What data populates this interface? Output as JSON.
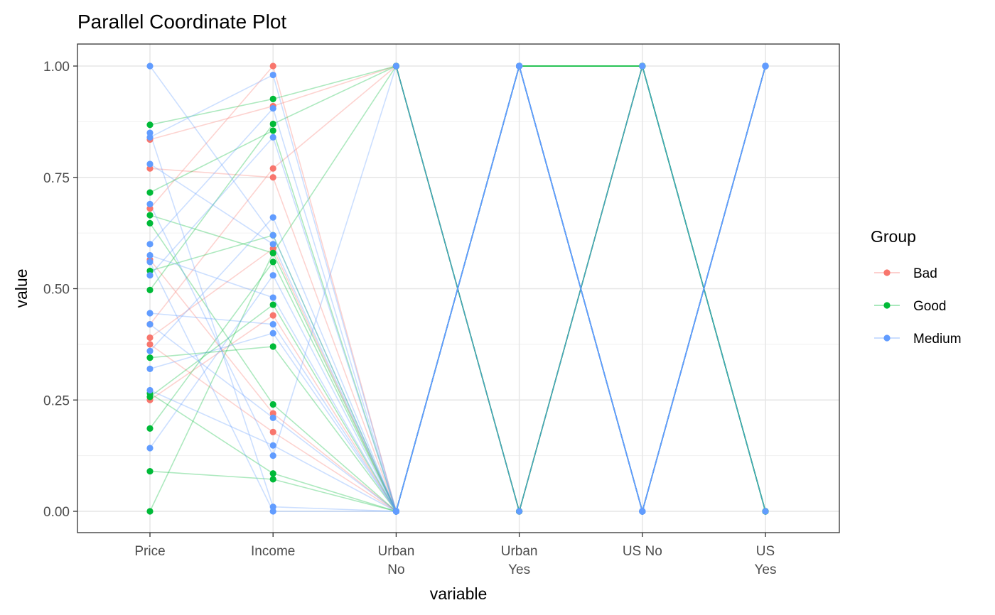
{
  "chart_data": {
    "type": "line",
    "title": "Parallel Coordinate Plot",
    "xlabel": "variable",
    "ylabel": "value",
    "ylim": [
      0,
      1
    ],
    "grid": true,
    "legend_position": "right",
    "legend_title": "Group",
    "x_categories": [
      [
        "Price"
      ],
      [
        "Income"
      ],
      [
        "Urban",
        "No"
      ],
      [
        "Urban",
        "Yes"
      ],
      [
        "US No"
      ],
      [
        "US",
        "Yes"
      ]
    ],
    "y_ticks": [
      {
        "value": 0,
        "label": "0.00"
      },
      {
        "value": 0.25,
        "label": "0.25"
      },
      {
        "value": 0.5,
        "label": "0.50"
      },
      {
        "value": 0.75,
        "label": "0.75"
      },
      {
        "value": 1,
        "label": "1.00"
      }
    ],
    "groups": [
      {
        "name": "Bad",
        "color": "#F8766D"
      },
      {
        "name": "Good",
        "color": "#00BA38"
      },
      {
        "name": "Medium",
        "color": "#619CFF"
      }
    ],
    "series": [
      {
        "group": "Bad",
        "values": [
          0.835,
          0.91,
          1,
          0,
          1,
          0
        ]
      },
      {
        "group": "Bad",
        "values": [
          0.77,
          0.75,
          0,
          1,
          0,
          1
        ]
      },
      {
        "group": "Bad",
        "values": [
          0.68,
          1.0,
          0,
          1,
          0,
          1
        ]
      },
      {
        "group": "Bad",
        "values": [
          0.565,
          0.22,
          0,
          1,
          0,
          1
        ]
      },
      {
        "group": "Bad",
        "values": [
          0.42,
          0.77,
          1,
          0,
          1,
          0
        ]
      },
      {
        "group": "Bad",
        "values": [
          0.39,
          0.59,
          0,
          1,
          0,
          1
        ]
      },
      {
        "group": "Bad",
        "values": [
          0.375,
          0.178,
          0,
          1,
          0,
          1
        ]
      },
      {
        "group": "Bad",
        "values": [
          0.25,
          0.44,
          0,
          1,
          0,
          1
        ]
      },
      {
        "group": "Good",
        "values": [
          0.868,
          0.926,
          1,
          0,
          1,
          0
        ]
      },
      {
        "group": "Good",
        "values": [
          0.716,
          0.855,
          0,
          1,
          0,
          1
        ]
      },
      {
        "group": "Good",
        "values": [
          0.665,
          0.58,
          0,
          1,
          0,
          1
        ]
      },
      {
        "group": "Good",
        "values": [
          0.647,
          0.24,
          0,
          1,
          1,
          0
        ]
      },
      {
        "group": "Good",
        "values": [
          0.54,
          0.62,
          0,
          1,
          0,
          1
        ]
      },
      {
        "group": "Good",
        "values": [
          0.497,
          0.87,
          1,
          0,
          1,
          0
        ]
      },
      {
        "group": "Good",
        "values": [
          0.345,
          0.37,
          0,
          1,
          0,
          1
        ]
      },
      {
        "group": "Good",
        "values": [
          0.265,
          0.085,
          0,
          1,
          0,
          1
        ]
      },
      {
        "group": "Good",
        "values": [
          0.257,
          0.464,
          0,
          1,
          0,
          1
        ]
      },
      {
        "group": "Good",
        "values": [
          0.186,
          0.56,
          0,
          1,
          1,
          0
        ]
      },
      {
        "group": "Good",
        "values": [
          0.09,
          0.072,
          0,
          1,
          0,
          1
        ]
      },
      {
        "group": "Good",
        "values": [
          0.0,
          0.58,
          1,
          0,
          1,
          0
        ]
      },
      {
        "group": "Medium",
        "values": [
          1.0,
          0.62,
          0,
          1,
          0,
          1
        ]
      },
      {
        "group": "Medium",
        "values": [
          0.85,
          0.01,
          0,
          1,
          0,
          1
        ]
      },
      {
        "group": "Medium",
        "values": [
          0.84,
          0.98,
          0,
          1,
          0,
          1
        ]
      },
      {
        "group": "Medium",
        "values": [
          0.78,
          0.6,
          0,
          1,
          0,
          1
        ]
      },
      {
        "group": "Medium",
        "values": [
          0.69,
          0.125,
          1,
          0,
          1,
          0
        ]
      },
      {
        "group": "Medium",
        "values": [
          0.6,
          0.905,
          0,
          1,
          0,
          1
        ]
      },
      {
        "group": "Medium",
        "values": [
          0.575,
          0.48,
          0,
          1,
          0,
          1
        ]
      },
      {
        "group": "Medium",
        "values": [
          0.56,
          0.0,
          0,
          1,
          0,
          1
        ]
      },
      {
        "group": "Medium",
        "values": [
          0.53,
          0.84,
          0,
          1,
          0,
          1
        ]
      },
      {
        "group": "Medium",
        "values": [
          0.445,
          0.42,
          0,
          1,
          0,
          1
        ]
      },
      {
        "group": "Medium",
        "values": [
          0.42,
          0.21,
          0,
          1,
          0,
          1
        ]
      },
      {
        "group": "Medium",
        "values": [
          0.36,
          0.66,
          0,
          1,
          0,
          1
        ]
      },
      {
        "group": "Medium",
        "values": [
          0.32,
          0.4,
          0,
          1,
          0,
          1
        ]
      },
      {
        "group": "Medium",
        "values": [
          0.272,
          0.148,
          0,
          1,
          0,
          1
        ]
      },
      {
        "group": "Medium",
        "values": [
          0.142,
          0.53,
          0,
          1,
          0,
          1
        ]
      }
    ]
  }
}
